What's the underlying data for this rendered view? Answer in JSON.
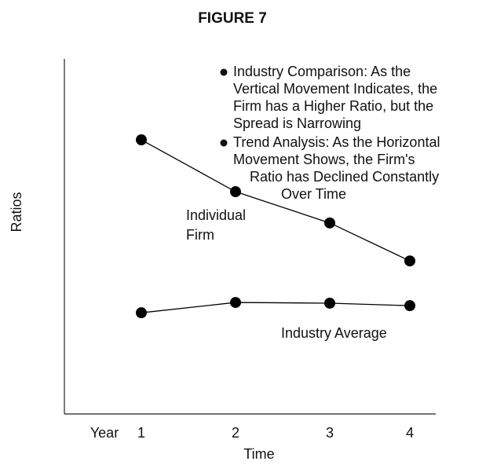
{
  "chart_data": {
    "type": "line",
    "title": "FIGURE 7",
    "xlabel": "Time",
    "ylabel": "Ratios",
    "xprefix": "Year",
    "categories": [
      "1",
      "2",
      "3",
      "4"
    ],
    "series": [
      {
        "name": "Individual Firm",
        "color": "#000000",
        "values": [
          77.2,
          62.6,
          53.8,
          43.1
        ]
      },
      {
        "name": "Industry Average",
        "color": "#000000",
        "values": [
          28.5,
          31.4,
          31.2,
          30.5
        ]
      }
    ],
    "ylim": [
      0,
      100
    ],
    "annotations": [
      {
        "lines": [
          "Industry Comparison:  As the",
          "Vertical Movement Indicates, the",
          "Firm has a Higher Ratio, but the",
          "Spread is Narrowing"
        ]
      },
      {
        "lines": [
          "Trend Analysis: As the Horizontal",
          "Movement Shows, the Firm's",
          "Ratio has Declined Constantly",
          "Over Time"
        ]
      }
    ]
  }
}
